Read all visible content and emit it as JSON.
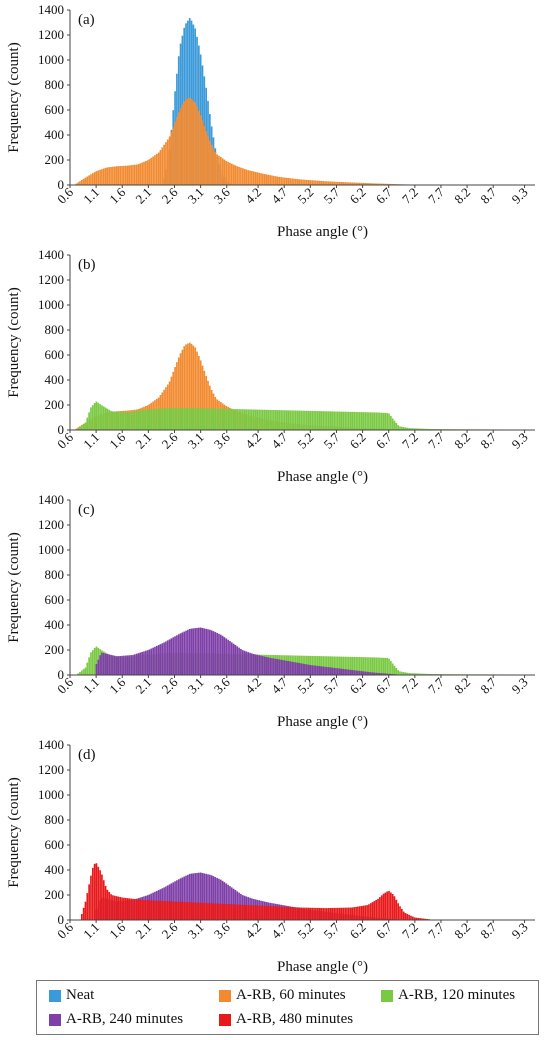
{
  "colors": {
    "neat": "#3b9ad9",
    "rb60": "#f28a30",
    "rb120": "#7ac943",
    "rb240": "#7e3fa8",
    "rb480": "#e8191b"
  },
  "legend": [
    {
      "key": "neat",
      "label": "Neat"
    },
    {
      "key": "rb60",
      "label": "A-RB, 60 minutes"
    },
    {
      "key": "rb120",
      "label": "A-RB, 120 minutes"
    },
    {
      "key": "rb240",
      "label": "A-RB, 240 minutes"
    },
    {
      "key": "rb480",
      "label": "A-RB, 480 minutes"
    }
  ],
  "chart_data": [
    {
      "type": "bar",
      "panel_label": "(a)",
      "xlabel": "Phase angle (°)",
      "ylabel": "Frequency (count)",
      "ylim": [
        0,
        1400
      ],
      "yticks": [
        0,
        200,
        400,
        600,
        800,
        1000,
        1200,
        1400
      ],
      "xlim": [
        0.6,
        9.5
      ],
      "xticks": [
        0.6,
        1.1,
        1.6,
        2.1,
        2.6,
        3.1,
        3.6,
        4.2,
        4.7,
        5.2,
        5.7,
        6.2,
        6.7,
        7.2,
        7.7,
        8.2,
        8.7,
        9.3
      ],
      "series": [
        {
          "name": "Neat",
          "color_key": "neat",
          "x": [
            2.4,
            2.5,
            2.6,
            2.7,
            2.8,
            2.9,
            3.0,
            3.1,
            3.2,
            3.3,
            3.4,
            3.5,
            3.6,
            3.7
          ],
          "y": [
            50,
            250,
            700,
            1100,
            1280,
            1340,
            1250,
            1050,
            800,
            500,
            250,
            100,
            30,
            5
          ]
        },
        {
          "name": "A-RB, 60 minutes",
          "color_key": "rb60",
          "x": [
            0.7,
            0.9,
            1.1,
            1.3,
            1.5,
            1.7,
            1.9,
            2.1,
            2.3,
            2.5,
            2.6,
            2.7,
            2.8,
            2.9,
            3.0,
            3.1,
            3.2,
            3.3,
            3.4,
            3.6,
            3.8,
            4.0,
            4.3,
            4.6,
            5.0,
            5.5,
            6.0,
            6.5,
            7.0,
            7.5
          ],
          "y": [
            5,
            60,
            110,
            140,
            150,
            155,
            165,
            200,
            260,
            380,
            490,
            600,
            680,
            700,
            660,
            560,
            440,
            330,
            250,
            190,
            150,
            120,
            90,
            65,
            45,
            30,
            20,
            12,
            5,
            0
          ]
        }
      ]
    },
    {
      "type": "bar",
      "panel_label": "(b)",
      "xlabel": "Phase angle (°)",
      "ylabel": "Frequency (count)",
      "ylim": [
        0,
        1400
      ],
      "yticks": [
        0,
        200,
        400,
        600,
        800,
        1000,
        1200,
        1400
      ],
      "xlim": [
        0.6,
        9.5
      ],
      "xticks": [
        0.6,
        1.1,
        1.6,
        2.1,
        2.6,
        3.1,
        3.6,
        4.2,
        4.7,
        5.2,
        5.7,
        6.2,
        6.7,
        7.2,
        7.7,
        8.2,
        8.7,
        9.3
      ],
      "series": [
        {
          "name": "A-RB, 60 minutes",
          "color_key": "rb60",
          "x": [
            0.7,
            0.9,
            1.1,
            1.3,
            1.5,
            1.7,
            1.9,
            2.1,
            2.3,
            2.5,
            2.6,
            2.7,
            2.8,
            2.9,
            3.0,
            3.1,
            3.2,
            3.3,
            3.4,
            3.6,
            3.8,
            4.0,
            4.3,
            4.6,
            5.0,
            5.5,
            6.0,
            6.5,
            7.0,
            7.5
          ],
          "y": [
            5,
            60,
            110,
            140,
            150,
            155,
            165,
            200,
            260,
            380,
            490,
            600,
            680,
            700,
            660,
            560,
            440,
            330,
            250,
            190,
            150,
            120,
            90,
            65,
            45,
            30,
            20,
            12,
            5,
            0
          ]
        },
        {
          "name": "A-RB, 120 minutes",
          "color_key": "rb120",
          "x": [
            0.75,
            0.9,
            1.0,
            1.1,
            1.2,
            1.4,
            1.7,
            2.0,
            2.5,
            3.0,
            3.5,
            4.0,
            4.5,
            5.0,
            5.5,
            6.0,
            6.5,
            6.7,
            6.8,
            6.9,
            7.1,
            7.5,
            8.0,
            8.5,
            9.0,
            9.3
          ],
          "y": [
            10,
            60,
            180,
            230,
            200,
            150,
            140,
            160,
            175,
            175,
            170,
            165,
            160,
            155,
            150,
            145,
            140,
            135,
            80,
            30,
            15,
            8,
            6,
            5,
            4,
            2
          ]
        }
      ]
    },
    {
      "type": "bar",
      "panel_label": "(c)",
      "xlabel": "Phase angle (°)",
      "ylabel": "Frequency (count)",
      "ylim": [
        0,
        1400
      ],
      "yticks": [
        0,
        200,
        400,
        600,
        800,
        1000,
        1200,
        1400
      ],
      "xlim": [
        0.6,
        9.5
      ],
      "xticks": [
        0.6,
        1.1,
        1.6,
        2.1,
        2.6,
        3.1,
        3.6,
        4.2,
        4.7,
        5.2,
        5.7,
        6.2,
        6.7,
        7.2,
        7.7,
        8.2,
        8.7,
        9.3
      ],
      "series": [
        {
          "name": "A-RB, 120 minutes",
          "color_key": "rb120",
          "x": [
            0.75,
            0.9,
            1.0,
            1.1,
            1.2,
            1.4,
            1.7,
            2.0,
            2.5,
            3.0,
            3.5,
            4.0,
            4.5,
            5.0,
            5.5,
            6.0,
            6.5,
            6.7,
            6.8,
            6.9,
            7.1,
            7.5,
            8.0,
            8.5,
            9.0,
            9.3
          ],
          "y": [
            10,
            60,
            180,
            230,
            200,
            150,
            140,
            160,
            175,
            175,
            170,
            165,
            160,
            155,
            150,
            145,
            140,
            135,
            80,
            30,
            15,
            8,
            6,
            5,
            4,
            2
          ]
        },
        {
          "name": "A-RB, 240 minutes",
          "color_key": "rb240",
          "x": [
            1.1,
            1.2,
            1.3,
            1.5,
            1.8,
            2.1,
            2.4,
            2.7,
            2.9,
            3.1,
            3.3,
            3.5,
            3.7,
            3.9,
            4.1,
            4.4,
            4.8,
            5.2,
            5.6,
            6.0,
            6.4,
            6.7,
            7.0
          ],
          "y": [
            80,
            180,
            170,
            150,
            160,
            200,
            260,
            330,
            370,
            380,
            360,
            320,
            260,
            200,
            170,
            140,
            110,
            80,
            60,
            40,
            20,
            10,
            0
          ]
        }
      ]
    },
    {
      "type": "bar",
      "panel_label": "(d)",
      "xlabel": "Phase angle (°)",
      "ylabel": "Frequency (count)",
      "ylim": [
        0,
        1400
      ],
      "yticks": [
        0,
        200,
        400,
        600,
        800,
        1000,
        1200,
        1400
      ],
      "xlim": [
        0.6,
        9.5
      ],
      "xticks": [
        0.6,
        1.1,
        1.6,
        2.1,
        2.6,
        3.1,
        3.6,
        4.2,
        4.7,
        5.2,
        5.7,
        6.2,
        6.7,
        7.2,
        7.7,
        8.2,
        8.7,
        9.3
      ],
      "series": [
        {
          "name": "A-RB, 240 minutes",
          "color_key": "rb240",
          "x": [
            1.1,
            1.2,
            1.3,
            1.5,
            1.8,
            2.1,
            2.4,
            2.7,
            2.9,
            3.1,
            3.3,
            3.5,
            3.7,
            3.9,
            4.1,
            4.4,
            4.8,
            5.2,
            5.6,
            6.0,
            6.4,
            6.7,
            7.0
          ],
          "y": [
            80,
            180,
            170,
            150,
            160,
            200,
            260,
            330,
            370,
            380,
            360,
            320,
            260,
            200,
            170,
            140,
            110,
            80,
            60,
            40,
            20,
            10,
            0
          ]
        },
        {
          "name": "A-RB, 480 minutes",
          "color_key": "rb480",
          "x": [
            0.8,
            0.9,
            1.0,
            1.05,
            1.1,
            1.2,
            1.3,
            1.4,
            1.6,
            1.8,
            2.0,
            2.5,
            3.0,
            3.5,
            4.0,
            4.5,
            5.0,
            5.5,
            6.0,
            6.3,
            6.5,
            6.6,
            6.7,
            6.8,
            6.9,
            7.0,
            7.2,
            7.5
          ],
          "y": [
            10,
            150,
            350,
            440,
            460,
            380,
            250,
            200,
            180,
            170,
            160,
            150,
            140,
            130,
            120,
            110,
            100,
            95,
            100,
            120,
            170,
            210,
            235,
            200,
            120,
            60,
            20,
            5
          ]
        }
      ]
    }
  ]
}
